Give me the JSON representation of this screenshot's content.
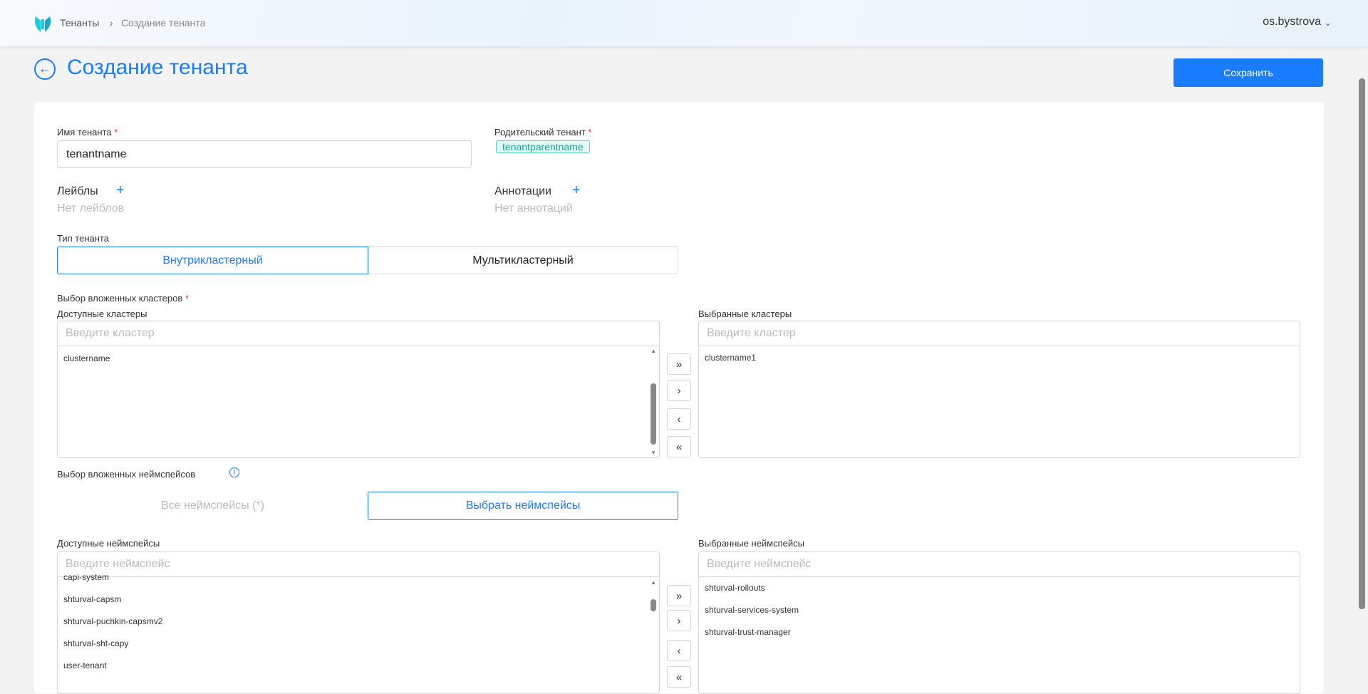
{
  "header": {
    "breadcrumbs": [
      "Тенанты",
      "Создание тенанта"
    ],
    "user": "os.bystrova"
  },
  "page": {
    "title": "Создание тенанта",
    "save_label": "Сохранить"
  },
  "form": {
    "tenant_name": {
      "label": "Имя тенанта",
      "required": "*",
      "value": "tenantname"
    },
    "parent_tenant": {
      "label": "Родительский тенант",
      "required": "*",
      "value": "tenantparentname"
    },
    "labels": {
      "label": "Лейблы",
      "plus": "+",
      "empty": "Нет лейблов"
    },
    "annotations": {
      "label": "Аннотации",
      "plus": "+",
      "empty": "Нет аннотаций"
    },
    "tenant_type": {
      "label": "Тип тенанта",
      "options": [
        "Внутрикластерный",
        "Мультикластерный"
      ],
      "selected": "Внутрикластерный"
    },
    "clusters": {
      "label": "Выбор вложенных кластеров",
      "required": "*",
      "available_label": "Доступные кластеры",
      "selected_label": "Выбранные кластеры",
      "placeholder": "Введите кластер",
      "available": [
        "clustername"
      ],
      "selected": [
        "clustername1"
      ]
    },
    "ns_mode": {
      "label": "Выбор вложенных неймспейсов",
      "options": [
        "Все неймспейсы (*)",
        "Выбрать неймспейсы"
      ],
      "selected": "Выбрать неймспейсы"
    },
    "namespaces": {
      "available_label": "Доступные неймспейсы",
      "selected_label": "Выбранные неймспейсы",
      "placeholder": "Введите неймспейс",
      "available": [
        "capi-system",
        "shturval-capsm",
        "shturval-puchkin-capsmv2",
        "shturval-sht-capy",
        "user-tenant"
      ],
      "selected": [
        "shturval-rollouts",
        "shturval-services-system",
        "shturval-trust-manager"
      ]
    },
    "transfer": {
      "all_right": "»",
      "right": "›",
      "left": "‹",
      "all_left": "«"
    }
  },
  "colors": {
    "accent": "#1a7cff",
    "required": "#e53935",
    "tag": "#1aa39a"
  }
}
